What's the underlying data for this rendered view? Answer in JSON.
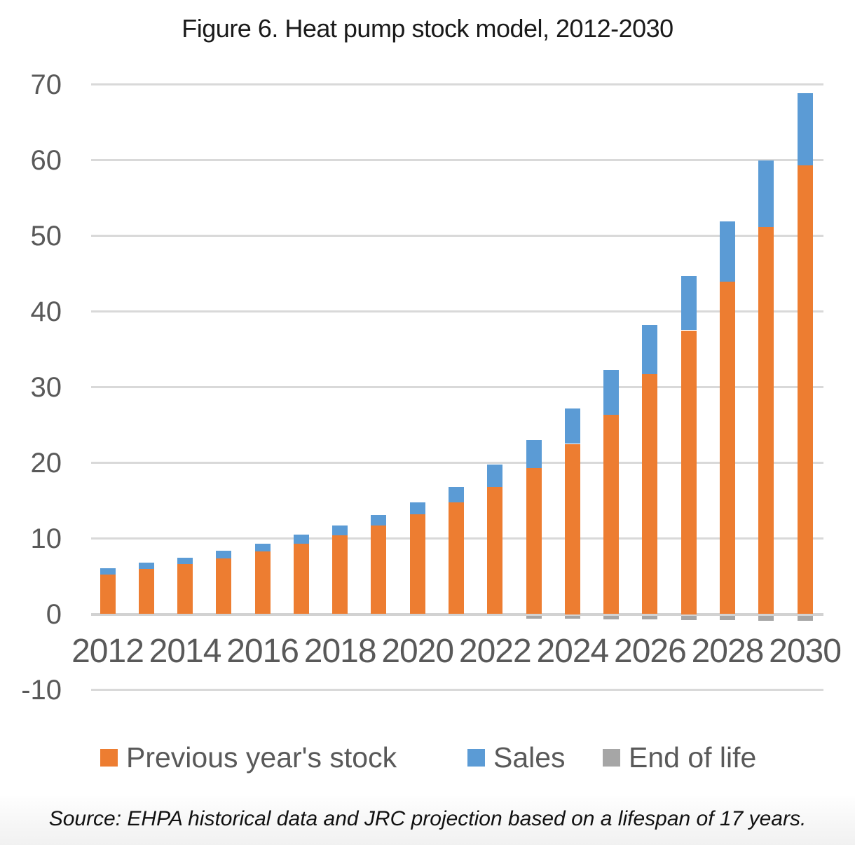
{
  "title": "Figure 6. Heat pump stock model, 2012-2030",
  "source_note": "Source: EHPA historical data and JRC projection based on a lifespan of 17 years.",
  "chart_data": {
    "type": "bar",
    "stacked": true,
    "title": "Figure 6. Heat pump stock model, 2012-2030",
    "categories": [
      2012,
      2013,
      2014,
      2015,
      2016,
      2017,
      2018,
      2019,
      2020,
      2021,
      2022,
      2023,
      2024,
      2025,
      2026,
      2027,
      2028,
      2029,
      2030
    ],
    "series": [
      {
        "name": "Previous year's stock",
        "color": "#ED7D31",
        "values": [
          5.2,
          6.0,
          6.6,
          7.4,
          8.3,
          9.3,
          10.4,
          11.7,
          13.2,
          14.8,
          16.8,
          19.3,
          22.5,
          26.3,
          31.7,
          37.5,
          43.9,
          51.2,
          59.3
        ]
      },
      {
        "name": "Sales",
        "color": "#5B9BD5",
        "values": [
          0.9,
          0.8,
          0.9,
          1.0,
          1.0,
          1.2,
          1.3,
          1.4,
          1.6,
          2.0,
          3.0,
          3.7,
          4.7,
          6.0,
          6.5,
          7.2,
          8.0,
          8.8,
          9.5
        ]
      },
      {
        "name": "End of life",
        "color": "#A6A6A6",
        "values": [
          0,
          0,
          0,
          0,
          0,
          0,
          0,
          0,
          0,
          0,
          0,
          -0.4,
          -0.4,
          -0.5,
          -0.5,
          -0.6,
          -0.6,
          -0.7,
          -0.7
        ]
      }
    ],
    "xlabel": "",
    "ylabel": "",
    "ylim": [
      -10,
      70
    ],
    "y_ticks": [
      70,
      60,
      50,
      40,
      30,
      20,
      10,
      0,
      -10
    ],
    "x_tick_labels": [
      "2012",
      "2014",
      "2016",
      "2018",
      "2020",
      "2022",
      "2024",
      "2026",
      "2028",
      "2030"
    ],
    "grid": true,
    "legend_position": "bottom",
    "colors": {
      "gridline": "#d9d9d9",
      "axis_text": "#595959",
      "title_text": "#1a1a1a"
    }
  }
}
